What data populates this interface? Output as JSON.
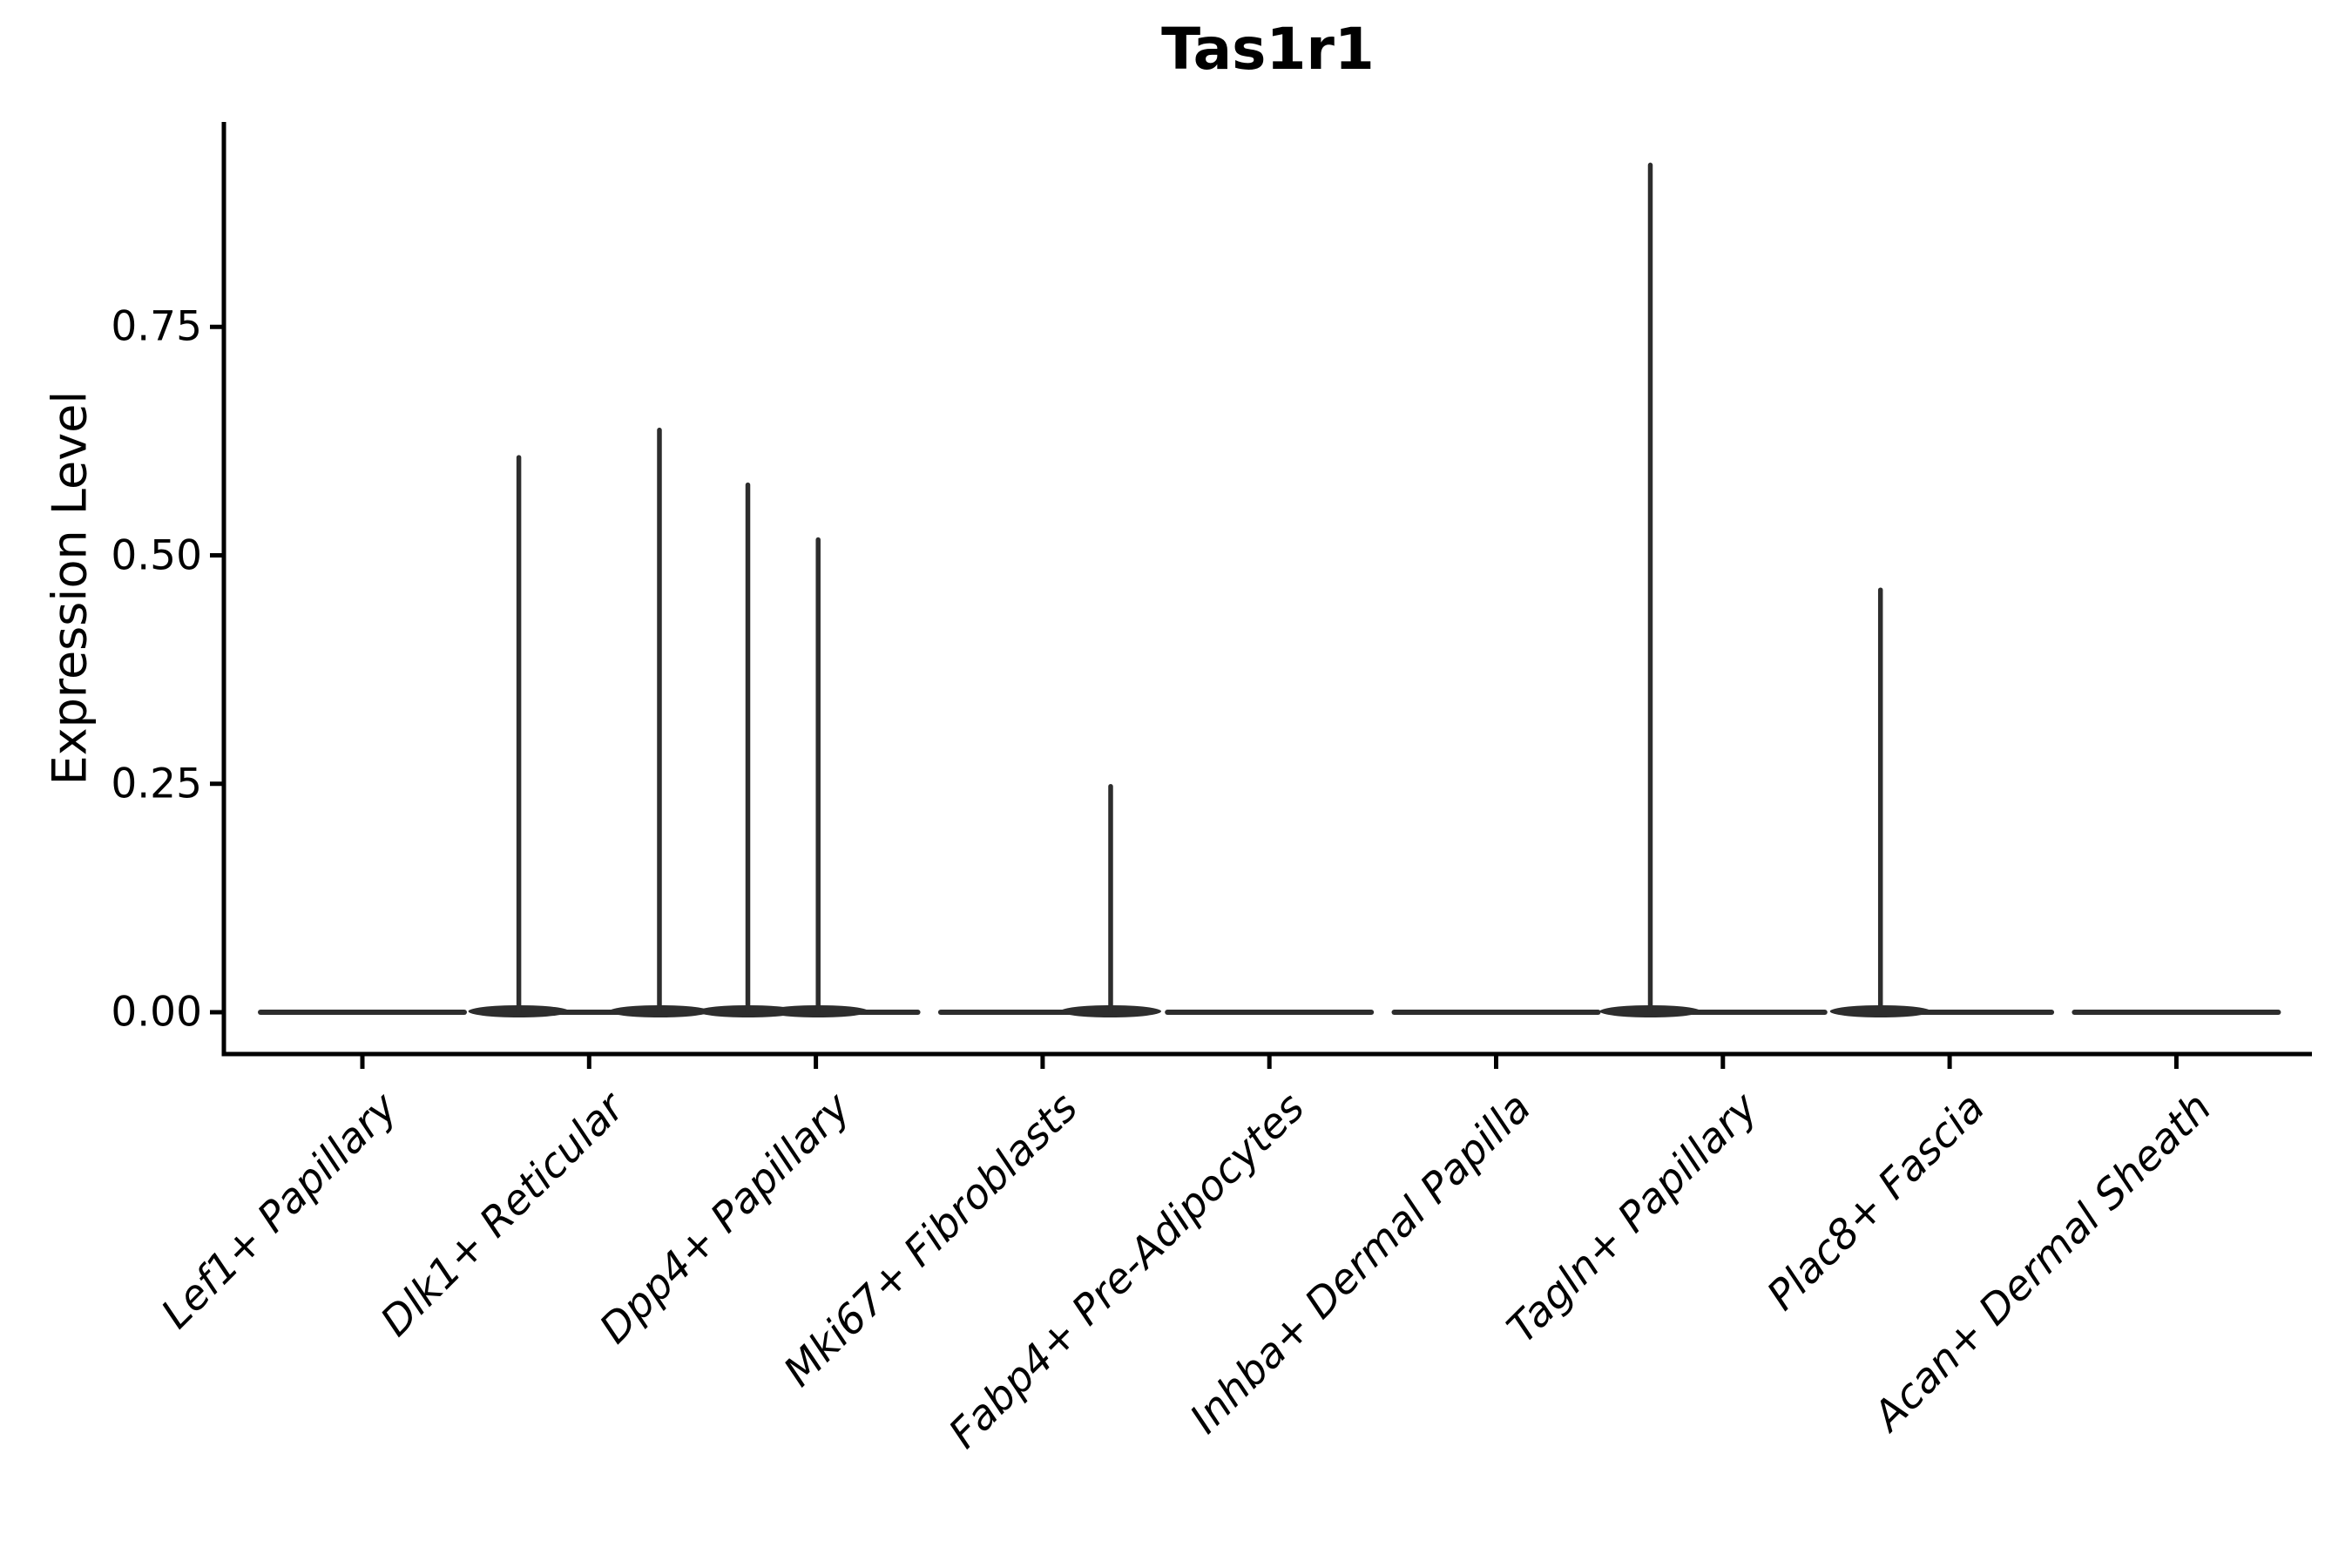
{
  "title": "Tas1r1",
  "y_axis": {
    "label": "Expression Level",
    "tick_labels": [
      "0.00",
      "0.25",
      "0.50",
      "0.75"
    ],
    "tick_values": [
      0,
      0.25,
      0.5,
      0.75
    ],
    "min": -0.046,
    "max": 0.973
  },
  "x_axis": {
    "categories": [
      "Lef1+ Papillary",
      "Dlk1+ Reticular",
      "Dpp4+ Papillary",
      "Mki67+ Fibroblasts",
      "Fabp4+ Pre-Adipocytes",
      "Inhba+ Dermal Papilla",
      "Tagln+ Papillary",
      "Plac8+ Fascia",
      "Acan+ Dermal Sheath"
    ]
  },
  "chart_data": {
    "type": "violin",
    "title": "Tas1r1",
    "xlabel": "",
    "ylabel": "Expression Level",
    "categories": [
      "Lef1+ Papillary",
      "Dlk1+ Reticular",
      "Dpp4+ Papillary",
      "Mki67+ Fibroblasts",
      "Fabp4+ Pre-Adipocytes",
      "Inhba+ Dermal Papilla",
      "Tagln+ Papillary",
      "Plac8+ Fascia",
      "Acan+ Dermal Sheath"
    ],
    "ylim": [
      -0.046,
      0.973
    ],
    "yticks": [
      0,
      0.25,
      0.5,
      0.75
    ],
    "grid": false,
    "legend": false,
    "series": [
      {
        "name": "Lef1+ Papillary",
        "baseline_value": 0,
        "spikes": []
      },
      {
        "name": "Dlk1+ Reticular",
        "baseline_value": 0,
        "spikes": [
          {
            "offset": -0.31,
            "value": 0.61
          },
          {
            "offset": 0.31,
            "value": 0.64
          }
        ]
      },
      {
        "name": "Dpp4+ Papillary",
        "baseline_value": 0,
        "spikes": [
          {
            "offset": -0.3,
            "value": 0.58
          },
          {
            "offset": 0.01,
            "value": 0.52
          }
        ]
      },
      {
        "name": "Mki67+ Fibroblasts",
        "baseline_value": 0,
        "spikes": [
          {
            "offset": 0.3,
            "value": 0.25
          }
        ]
      },
      {
        "name": "Fabp4+ Pre-Adipocytes",
        "baseline_value": 0,
        "spikes": []
      },
      {
        "name": "Inhba+ Dermal Papilla",
        "baseline_value": 0,
        "spikes": []
      },
      {
        "name": "Tagln+ Papillary",
        "baseline_value": 0,
        "spikes": [
          {
            "offset": -0.32,
            "value": 0.93
          }
        ]
      },
      {
        "name": "Plac8+ Fascia",
        "baseline_value": 0,
        "spikes": [
          {
            "offset": -0.305,
            "value": 0.465
          }
        ]
      },
      {
        "name": "Acan+ Dermal Sheath",
        "baseline_value": 0,
        "spikes": []
      }
    ]
  },
  "colors": {
    "background": "#ffffff",
    "violin": "#2d2d2d",
    "axis": "#000000",
    "text": "#000000"
  }
}
